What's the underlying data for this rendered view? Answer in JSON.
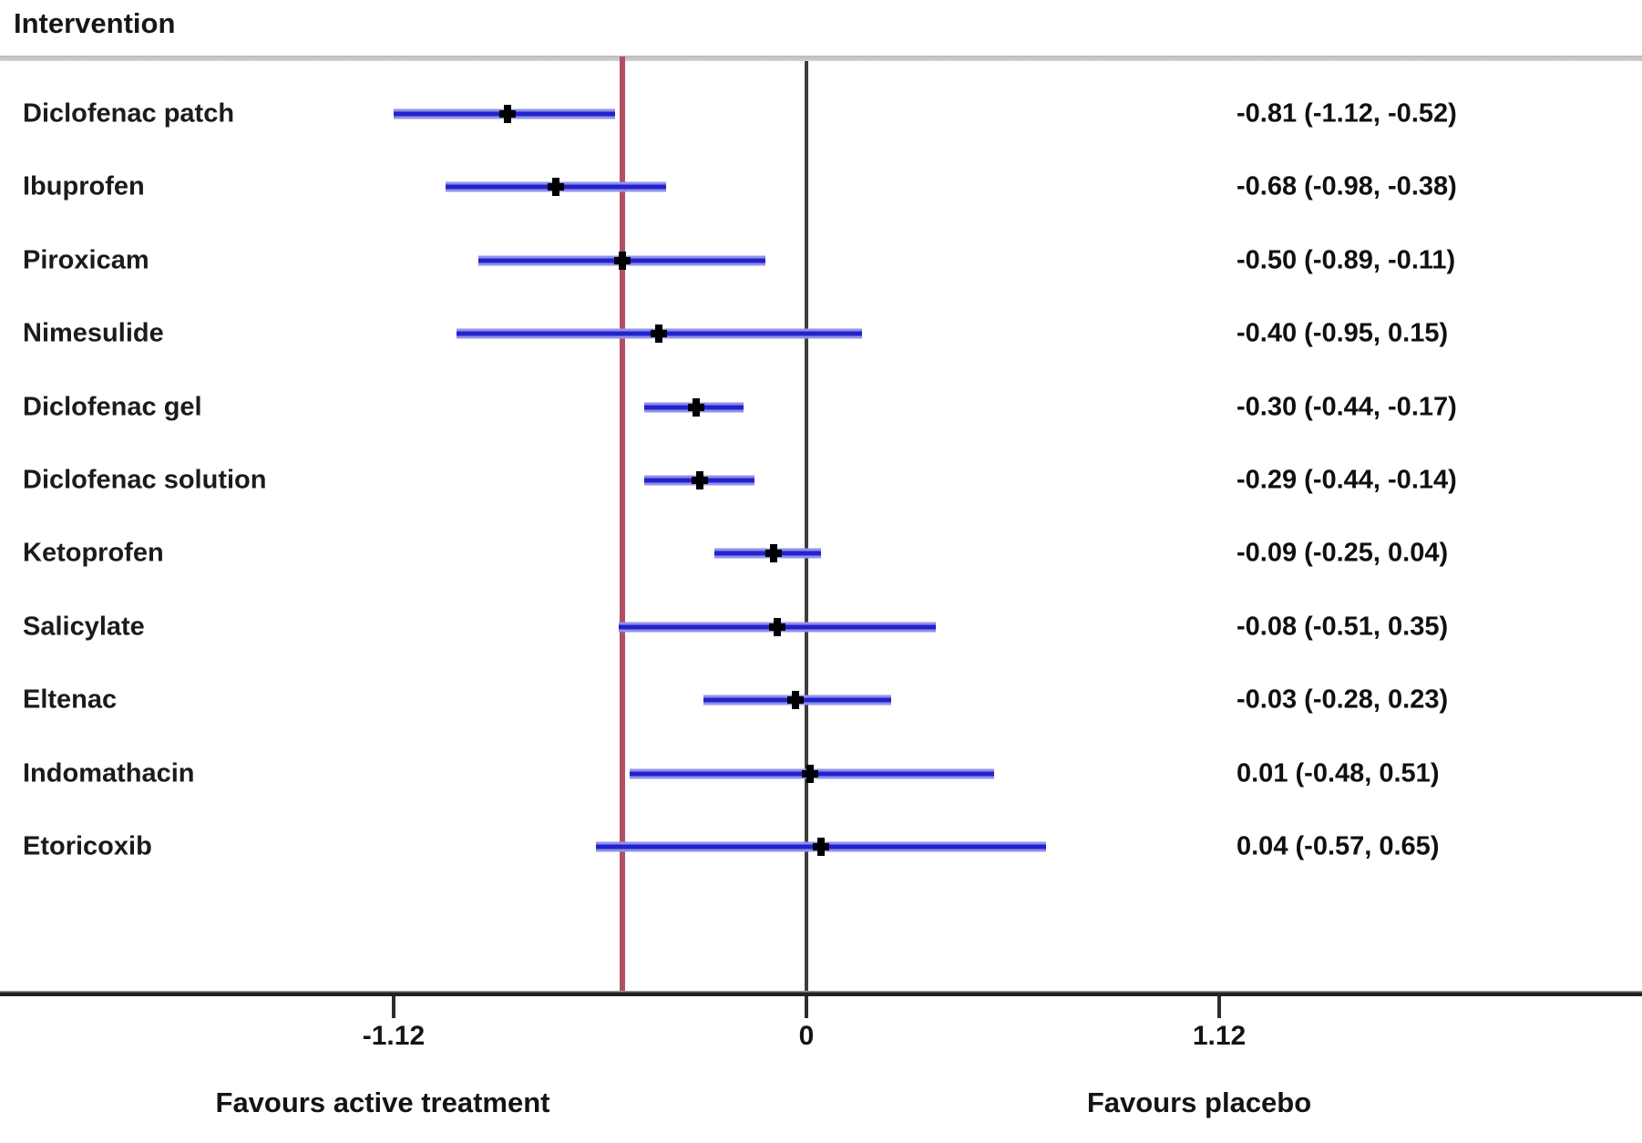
{
  "header": {
    "title": "Intervention"
  },
  "axis": {
    "tick_values": [
      -1.12,
      0,
      1.12
    ],
    "tick_labels": [
      "-1.12",
      "0",
      "1.12"
    ],
    "label_left": "Favours active treatment",
    "label_right": "Favours placebo"
  },
  "reference_lines": {
    "null_line_value": 0,
    "favour_threshold_value": -0.5
  },
  "colors": {
    "ci_line": "#2222cf",
    "ci_halo": "#9191e8",
    "reference_red": "#b14f63",
    "null_line": "#3e3e3e",
    "axis": "#222222",
    "header_rule": "#c6c6c6",
    "marker": "#000000"
  },
  "chart_data": {
    "type": "scatter",
    "variant": "forest-plot",
    "title": "Intervention",
    "xlabel_left": "Favours active treatment",
    "xlabel_right": "Favours placebo",
    "x_ticks": [
      -1.12,
      0,
      1.12
    ],
    "xlim": [
      -2.19,
      2.27
    ],
    "grid": false,
    "legend": "none",
    "reference_line_null": 0,
    "reference_line_red": -0.5,
    "rows": [
      {
        "label": "Diclofenac patch",
        "estimate": -0.81,
        "ci_lower": -1.12,
        "ci_upper": -0.52,
        "text": "-0.81 (-1.12, -0.52)"
      },
      {
        "label": "Ibuprofen",
        "estimate": -0.68,
        "ci_lower": -0.98,
        "ci_upper": -0.38,
        "text": "-0.68 (-0.98, -0.38)"
      },
      {
        "label": "Piroxicam",
        "estimate": -0.5,
        "ci_lower": -0.89,
        "ci_upper": -0.11,
        "text": "-0.50 (-0.89, -0.11)"
      },
      {
        "label": "Nimesulide",
        "estimate": -0.4,
        "ci_lower": -0.95,
        "ci_upper": 0.15,
        "text": "-0.40 (-0.95, 0.15)"
      },
      {
        "label": "Diclofenac gel",
        "estimate": -0.3,
        "ci_lower": -0.44,
        "ci_upper": -0.17,
        "text": "-0.30 (-0.44, -0.17)"
      },
      {
        "label": "Diclofenac solution",
        "estimate": -0.29,
        "ci_lower": -0.44,
        "ci_upper": -0.14,
        "text": "-0.29 (-0.44, -0.14)"
      },
      {
        "label": "Ketoprofen",
        "estimate": -0.09,
        "ci_lower": -0.25,
        "ci_upper": 0.04,
        "text": "-0.09 (-0.25, 0.04)"
      },
      {
        "label": "Salicylate",
        "estimate": -0.08,
        "ci_lower": -0.51,
        "ci_upper": 0.35,
        "text": "-0.08 (-0.51, 0.35)"
      },
      {
        "label": "Eltenac",
        "estimate": -0.03,
        "ci_lower": -0.28,
        "ci_upper": 0.23,
        "text": "-0.03 (-0.28, 0.23)"
      },
      {
        "label": "Indomathacin",
        "estimate": 0.01,
        "ci_lower": -0.48,
        "ci_upper": 0.51,
        "text": "0.01 (-0.48, 0.51)"
      },
      {
        "label": "Etoricoxib",
        "estimate": 0.04,
        "ci_lower": -0.57,
        "ci_upper": 0.65,
        "text": "0.04 (-0.57, 0.65)"
      }
    ]
  }
}
